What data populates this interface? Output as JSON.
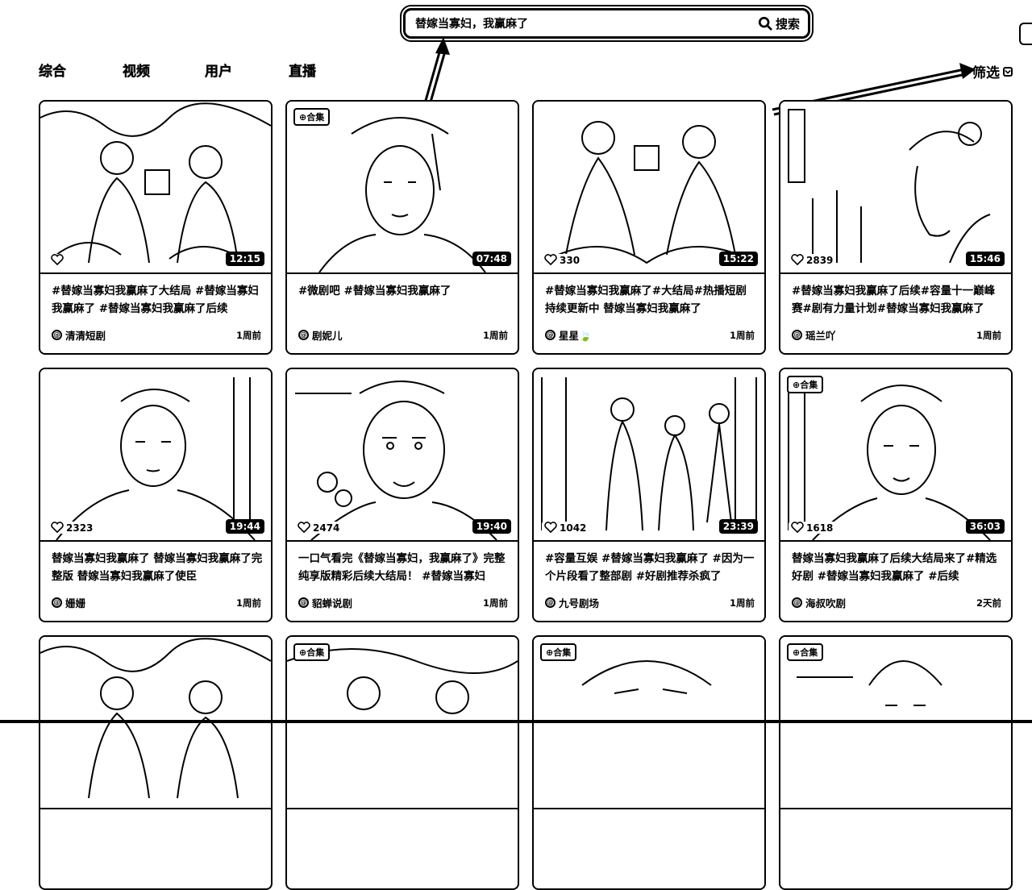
{
  "search": {
    "query": "替嫁当寡妇，我赢麻了",
    "button_label": "搜索",
    "button_icon": "search-icon"
  },
  "tabs": [
    {
      "label": "综合"
    },
    {
      "label": "视频"
    },
    {
      "label": "用户"
    },
    {
      "label": "直播"
    }
  ],
  "filter": {
    "label": "筛选",
    "icon": "chevron-down-icon"
  },
  "cards": [
    {
      "collection": "",
      "likes": "",
      "duration": "12:15",
      "title": "#替嫁当寡妇我赢麻了大结局 #替嫁当寡妇我赢麻了 #替嫁当寡妇我赢麻了后续",
      "author": "清清短剧",
      "date": "1周前"
    },
    {
      "collection": "合集",
      "likes": "",
      "duration": "07:48",
      "title": "#微剧吧 #替嫁当寡妇我赢麻了",
      "author": "剧妮儿",
      "date": "1周前"
    },
    {
      "collection": "",
      "likes": "330",
      "duration": "15:22",
      "title": "#替嫁当寡妇我赢麻了#大结局#热播短剧持续更新中 替嫁当寡妇我赢麻了",
      "author": "星星🍃",
      "date": "1周前"
    },
    {
      "collection": "",
      "likes": "2839",
      "duration": "15:46",
      "title": "#替嫁当寡妇我赢麻了后续#容量十一巅峰赛#剧有力量计划#替嫁当寡妇我赢麻了",
      "author": "瑶兰吖",
      "date": "1周前"
    },
    {
      "collection": "",
      "likes": "2323",
      "duration": "19:44",
      "title": "替嫁当寡妇我赢麻了 替嫁当寡妇我赢麻了完整版 替嫁当寡妇我赢麻了使臣",
      "author": "姗姗",
      "date": "1周前"
    },
    {
      "collection": "",
      "likes": "2474",
      "duration": "19:40",
      "title": "一口气看完《替嫁当寡妇，我赢麻了》完整纯享版精彩后续大结局！ #替嫁当寡妇",
      "author": "貂蝉说剧",
      "date": "1周前"
    },
    {
      "collection": "",
      "likes": "1042",
      "duration": "23:39",
      "title": "#容量互娱 #替嫁当寡妇我赢麻了 #因为一个片段看了整部剧 #好剧推荐杀疯了",
      "author": "九号剧场",
      "date": "1周前"
    },
    {
      "collection": "合集",
      "likes": "1618",
      "duration": "36:03",
      "title": "替嫁当寡妇我赢麻了后续大结局来了#精选好剧 #替嫁当寡妇我赢麻了 #后续",
      "author": "海叔吹剧",
      "date": "2天前"
    },
    {
      "collection": "",
      "likes": "",
      "duration": "",
      "title": "",
      "author": "",
      "date": ""
    },
    {
      "collection": "合集",
      "likes": "",
      "duration": "",
      "title": "",
      "author": "",
      "date": ""
    },
    {
      "collection": "合集",
      "likes": "",
      "duration": "",
      "title": "",
      "author": "",
      "date": ""
    },
    {
      "collection": "合集",
      "likes": "",
      "duration": "",
      "title": "",
      "author": "",
      "date": ""
    }
  ]
}
